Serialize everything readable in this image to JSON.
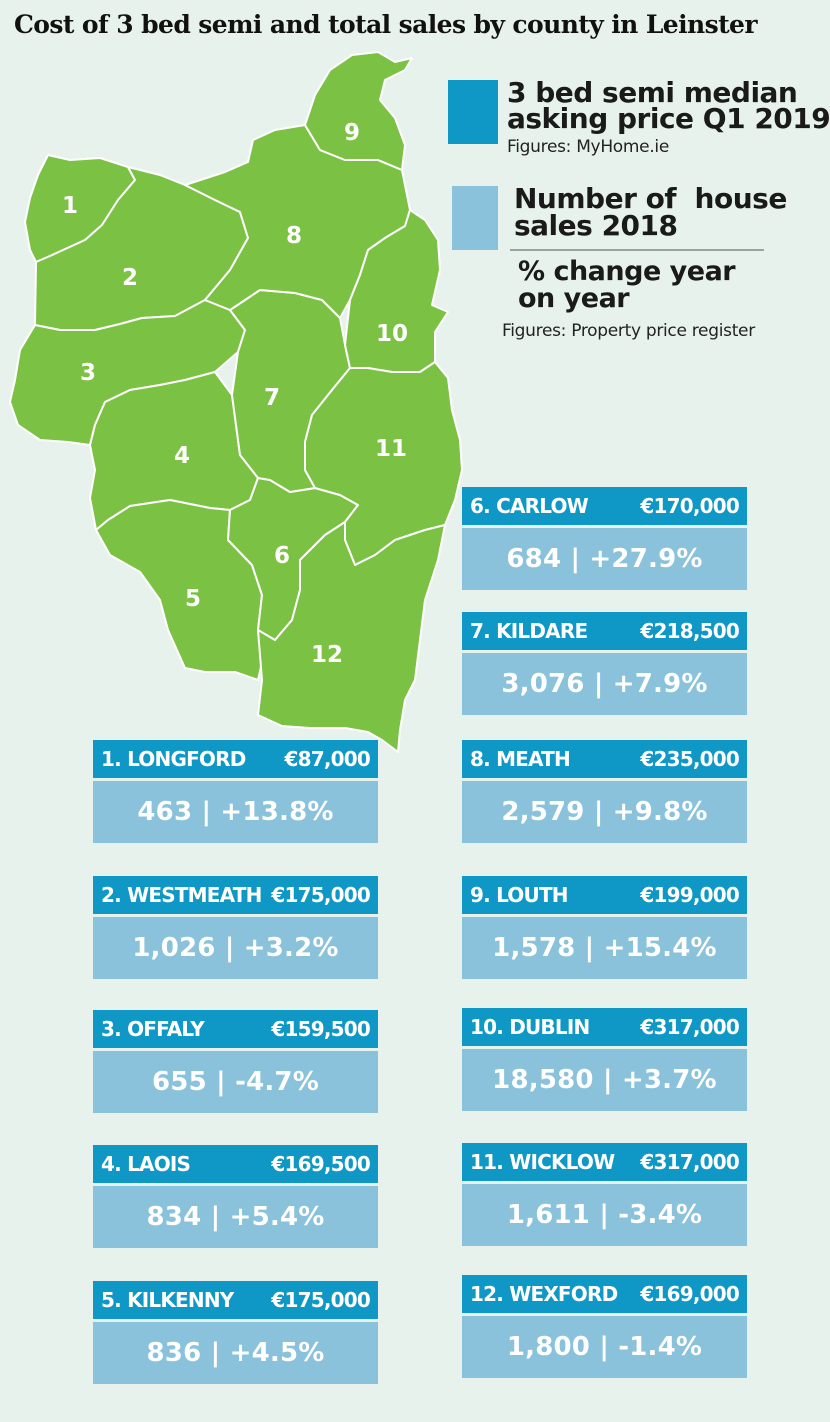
{
  "title": "Cost of 3 bed semi and total sales by county in Leinster",
  "legend": {
    "price_swatch_color": "#0f97c6",
    "sales_swatch_color": "#89c2da",
    "price_line1": "3 bed semi median",
    "price_line2": "asking price Q1 2019",
    "price_source": "Figures: MyHome.ie",
    "sales_line1": "Number of  house",
    "sales_line2": "sales 2018",
    "change_line1": "% change year",
    "change_line2": "on year",
    "sales_source": "Figures: Property price register"
  },
  "map": {
    "land_color": "#7bc143",
    "border_color": "#ffffff",
    "labels": [
      "1",
      "2",
      "3",
      "4",
      "5",
      "6",
      "7",
      "8",
      "9",
      "10",
      "11",
      "12"
    ]
  },
  "counties": [
    {
      "header": "1. LONGFORD",
      "price": "€87,000",
      "stats": "463 | +13.8%"
    },
    {
      "header": "2. WESTMEATH",
      "price": "€175,000",
      "stats": "1,026 | +3.2%"
    },
    {
      "header": "3. OFFALY",
      "price": "€159,500",
      "stats": "655 | -4.7%"
    },
    {
      "header": "4. LAOIS",
      "price": "€169,500",
      "stats": "834 | +5.4%"
    },
    {
      "header": "5. KILKENNY",
      "price": "€175,000",
      "stats": "836 | +4.5%"
    },
    {
      "header": "6. CARLOW",
      "price": "€170,000",
      "stats": "684 | +27.9%"
    },
    {
      "header": "7. KILDARE",
      "price": "€218,500",
      "stats": "3,076 | +7.9%"
    },
    {
      "header": "8. MEATH",
      "price": "€235,000",
      "stats": "2,579 | +9.8%"
    },
    {
      "header": "9. LOUTH",
      "price": "€199,000",
      "stats": "1,578 | +15.4%"
    },
    {
      "header": "10. DUBLIN",
      "price": "€317,000",
      "stats": "18,580 | +3.7%"
    },
    {
      "header": "11. WICKLOW",
      "price": "€317,000",
      "stats": "1,611 | -3.4%"
    },
    {
      "header": "12. WEXFORD",
      "price": "€169,000",
      "stats": "1,800 | -1.4%"
    }
  ]
}
